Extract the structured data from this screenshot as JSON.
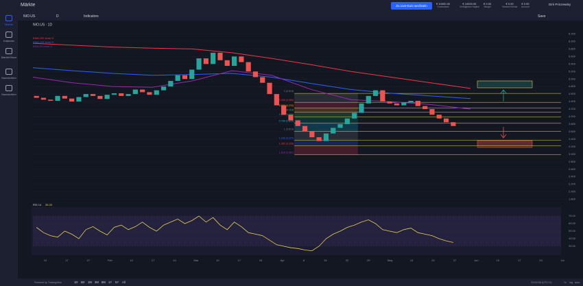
{
  "topbar": {
    "title": "Märkte",
    "live_button": "Zu Live-Kurs wechseln",
    "stats": [
      {
        "value": "€ 10000.00",
        "label": "Kontostand"
      },
      {
        "value": "€ 10000.00",
        "label": "Verfügbares Kapital"
      },
      {
        "value": "€ 0.00",
        "label": "Margin"
      },
      {
        "value": "€ 0.00",
        "label": "Gewinn/Verlust"
      },
      {
        "value": "€ 0.00",
        "label": "Account"
      }
    ],
    "user": "Dirk Prinzewsky"
  },
  "sidebar": [
    "Märkte",
    "Kalender",
    "Market Buzz",
    "Nachrichten",
    "Nachrichten"
  ],
  "toolbar": {
    "symbol": "NIO.US",
    "interval": "D",
    "indicators": "Indicators",
    "save": "Save"
  },
  "chart_data": {
    "type": "candlestick",
    "title": "NIO.US · 1D",
    "candles": {
      "open": [
        4.55,
        4.5,
        4.45,
        4.42,
        4.55,
        4.48,
        4.4,
        4.52,
        4.6,
        4.55,
        4.47,
        4.58,
        4.62,
        4.55,
        4.6,
        4.72,
        4.65,
        4.58,
        4.7,
        4.8,
        4.95,
        5.1,
        5.0,
        5.25,
        5.55,
        5.4,
        5.7,
        5.5,
        5.35,
        5.6,
        5.45,
        5.2,
        5.05,
        4.9,
        4.6,
        4.3,
        4.05,
        3.9,
        3.75,
        3.6,
        3.45,
        3.35,
        3.55,
        3.7,
        3.8,
        3.95,
        4.1,
        4.35,
        4.55,
        4.7,
        4.4,
        4.35,
        4.3,
        4.38,
        4.42,
        4.28,
        4.2,
        4.05,
        3.95,
        3.85
      ],
      "close": [
        4.5,
        4.45,
        4.42,
        4.55,
        4.48,
        4.4,
        4.52,
        4.6,
        4.55,
        4.47,
        4.58,
        4.62,
        4.55,
        4.6,
        4.72,
        4.65,
        4.58,
        4.7,
        4.8,
        4.95,
        5.1,
        5.0,
        5.25,
        5.55,
        5.4,
        5.7,
        5.5,
        5.35,
        5.6,
        5.45,
        5.2,
        5.05,
        4.9,
        4.6,
        4.3,
        4.05,
        3.9,
        3.75,
        3.6,
        3.45,
        3.35,
        3.55,
        3.7,
        3.8,
        3.95,
        4.1,
        4.35,
        4.55,
        4.7,
        4.4,
        4.35,
        4.3,
        4.38,
        4.42,
        4.28,
        4.2,
        4.05,
        3.95,
        3.85,
        3.75
      ]
    },
    "up_color": "#26a69a",
    "down_color": "#ef5350",
    "series": [
      {
        "name": "EMA 200 close 0",
        "color": "#f23645",
        "values": [
          5.95,
          5.9,
          5.85,
          5.82,
          5.8,
          5.7,
          5.55,
          5.38,
          5.2,
          5.05,
          4.9,
          4.75
        ]
      },
      {
        "name": "EMA 100 close 0",
        "color": "#2962ff",
        "values": [
          5.3,
          5.22,
          5.15,
          5.1,
          5.12,
          5.15,
          5.05,
          4.88,
          4.72,
          4.62,
          4.55,
          4.48
        ]
      },
      {
        "name": "EMA 50 close 0",
        "color": "#9c27b0",
        "values": [
          5.05,
          4.9,
          4.8,
          4.78,
          4.95,
          5.22,
          5.1,
          4.72,
          4.45,
          4.4,
          4.32,
          4.2
        ]
      }
    ],
    "ylim": [
      1.7,
      6.3
    ],
    "yticks": [
      {
        "value": 1.8,
        "label": "1.800"
      },
      {
        "value": 2.0,
        "label": "2.000"
      },
      {
        "value": 2.2,
        "label": "2.200"
      },
      {
        "value": 2.4,
        "label": "2.400"
      },
      {
        "value": 2.6,
        "label": "2.600"
      },
      {
        "value": 2.8,
        "label": "2.800"
      },
      {
        "value": 3.0,
        "label": "3.000"
      },
      {
        "value": 3.2,
        "label": "3.200"
      },
      {
        "value": 3.4,
        "label": "3.400"
      },
      {
        "value": 3.6,
        "label": "3.600"
      },
      {
        "value": 3.8,
        "label": "3.800"
      },
      {
        "value": 4.0,
        "label": "4.000"
      },
      {
        "value": 4.2,
        "label": "4.200"
      },
      {
        "value": 4.4,
        "label": "4.400"
      },
      {
        "value": 4.6,
        "label": "4.600"
      },
      {
        "value": 4.8,
        "label": "4.800"
      },
      {
        "value": 5.0,
        "label": "5.000"
      },
      {
        "value": 5.2,
        "label": "5.200"
      },
      {
        "value": 5.4,
        "label": "5.400"
      },
      {
        "value": 5.6,
        "label": "5.600"
      },
      {
        "value": 5.8,
        "label": "5.800"
      },
      {
        "value": 6.0,
        "label": "6.000"
      },
      {
        "value": 6.2,
        "label": "6.200"
      }
    ],
    "fib": [
      {
        "value": 4.618,
        "label": "0 (4.618)"
      },
      {
        "value": 4.38,
        "label": "0.236 (4.380)"
      },
      {
        "value": 4.233,
        "label": "0.382 (4.233)"
      },
      {
        "value": 4.114,
        "label": "0.5 (4.114)"
      },
      {
        "value": 3.995,
        "label": "0.618 (3.995)"
      },
      {
        "value": 3.826,
        "label": "0.786 (3.826)"
      },
      {
        "value": 3.61,
        "label": "1 (3.610)"
      },
      {
        "value": 3.372,
        "label": "1.236 (3.372)"
      },
      {
        "value": 3.225,
        "label": "1.382 (3.225)"
      },
      {
        "value": 2.987,
        "label": "1.618 (2.987)"
      }
    ],
    "xlabels": [
      "10",
      "17",
      "27",
      "Feb",
      "10",
      "17",
      "24",
      "Mar",
      "10",
      "17",
      "24",
      "Apr",
      "8",
      "15",
      "22",
      "29",
      "May",
      "13",
      "20",
      "27",
      "Jun",
      "10",
      "17",
      "24",
      "Jul"
    ],
    "rsi": {
      "title": "RSI 14",
      "last": "35.20",
      "color": "#e8d44d",
      "values": [
        55,
        48,
        44,
        42,
        50,
        46,
        40,
        52,
        56,
        50,
        45,
        55,
        58,
        52,
        56,
        62,
        55,
        50,
        58,
        62,
        66,
        60,
        64,
        70,
        62,
        68,
        58,
        52,
        62,
        56,
        48,
        46,
        44,
        38,
        32,
        30,
        28,
        27,
        25,
        24,
        30,
        40,
        46,
        50,
        55,
        58,
        62,
        65,
        60,
        52,
        50,
        48,
        52,
        54,
        48,
        46,
        44,
        40,
        37,
        35
      ],
      "ylim": [
        20,
        80
      ],
      "yticks": [
        {
          "value": 30,
          "label": "30.00"
        },
        {
          "value": 40,
          "label": "40.00"
        },
        {
          "value": 50,
          "label": "50.00"
        },
        {
          "value": 60,
          "label": "60.00"
        },
        {
          "value": 70,
          "label": "70.00"
        }
      ]
    }
  },
  "bottombar": {
    "ranges": [
      "1D",
      "5D",
      "1M",
      "3M",
      "6M",
      "1Y",
      "5Y",
      "All"
    ],
    "powered": "Powered by TradingView",
    "time": "23:53:08 (UTC+2)",
    "percent": "%",
    "log": "log",
    "auto": "auto"
  }
}
